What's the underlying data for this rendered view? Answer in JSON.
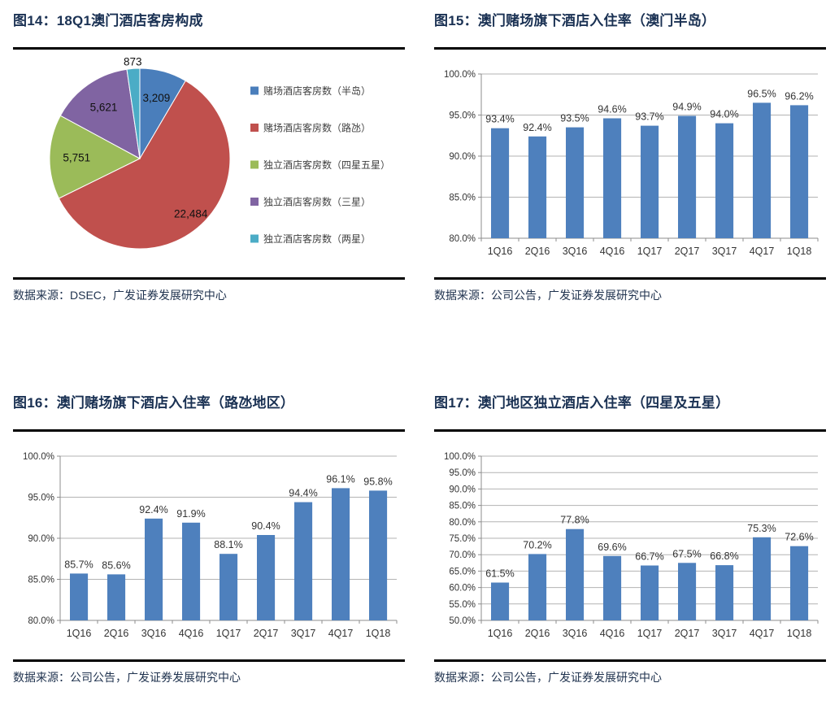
{
  "page": {
    "background": "#ffffff",
    "title_color": "#1a3153",
    "rule_color": "#000000",
    "axis_text_color": "#333333",
    "gridline_color": "#b3b3b3",
    "axis_line_color": "#8c8c8c"
  },
  "figures": [
    {
      "title": "图14：18Q1澳门酒店客房构成",
      "source": "数据来源：DSEC，广发证券发展研究中心",
      "chart_data": {
        "type": "pie",
        "legend_position": "right",
        "slices": [
          {
            "label": "赌场酒店客房数（半岛）",
            "value": 3209,
            "display": "3,209",
            "color": "#4a7ebb"
          },
          {
            "label": "赌场酒店客房数（路氹）",
            "value": 22484,
            "display": "22,484",
            "color": "#c0504d"
          },
          {
            "label": "独立酒店客房数（四星五星）",
            "value": 5751,
            "display": "5,751",
            "color": "#9bbb59"
          },
          {
            "label": "独立酒店客房数（三星）",
            "value": 5621,
            "display": "5,621",
            "color": "#8064a2"
          },
          {
            "label": "独立酒店客房数（两星）",
            "value": 873,
            "display": "873",
            "color": "#4bacc6"
          }
        ]
      }
    },
    {
      "title": "图15：澳门赌场旗下酒店入住率（澳门半岛）",
      "source": "数据来源：公司公告，广发证券发展研究中心",
      "chart_data": {
        "type": "bar",
        "categories": [
          "1Q16",
          "2Q16",
          "3Q16",
          "4Q16",
          "1Q17",
          "2Q17",
          "3Q17",
          "4Q17",
          "1Q18"
        ],
        "values": [
          93.4,
          92.4,
          93.5,
          94.6,
          93.7,
          94.9,
          94.0,
          96.5,
          96.2
        ],
        "labels": [
          "93.4%",
          "92.4%",
          "93.5%",
          "94.6%",
          "93.7%",
          "94.9%",
          "94.0%",
          "96.5%",
          "96.2%"
        ],
        "ylim": [
          80,
          100
        ],
        "ytick_values": [
          80,
          85,
          90,
          95,
          100
        ],
        "ytick_labels": [
          "80.0%",
          "85.0%",
          "90.0%",
          "95.0%",
          "100.0%"
        ],
        "grid": true,
        "legend_position": "none",
        "bar_color": "#4e80bd"
      }
    },
    {
      "title": "图16：澳门赌场旗下酒店入住率（路氹地区）",
      "source": "数据来源：公司公告，广发证券发展研究中心",
      "chart_data": {
        "type": "bar",
        "categories": [
          "1Q16",
          "2Q16",
          "3Q16",
          "4Q16",
          "1Q17",
          "2Q17",
          "3Q17",
          "4Q17",
          "1Q18"
        ],
        "values": [
          85.7,
          85.6,
          92.4,
          91.9,
          88.1,
          90.4,
          94.4,
          96.1,
          95.8
        ],
        "labels": [
          "85.7%",
          "85.6%",
          "92.4%",
          "91.9%",
          "88.1%",
          "90.4%",
          "94.4%",
          "96.1%",
          "95.8%"
        ],
        "ylim": [
          80,
          100
        ],
        "ytick_values": [
          80,
          85,
          90,
          95,
          100
        ],
        "ytick_labels": [
          "80.0%",
          "85.0%",
          "90.0%",
          "95.0%",
          "100.0%"
        ],
        "grid": true,
        "legend_position": "none",
        "bar_color": "#4e80bd"
      }
    },
    {
      "title": "图17：澳门地区独立酒店入住率（四星及五星）",
      "source": "数据来源：公司公告，广发证券发展研究中心",
      "chart_data": {
        "type": "bar",
        "categories": [
          "1Q16",
          "2Q16",
          "3Q16",
          "4Q16",
          "1Q17",
          "2Q17",
          "3Q17",
          "4Q17",
          "1Q18"
        ],
        "values": [
          61.5,
          70.2,
          77.8,
          69.6,
          66.7,
          67.5,
          66.8,
          75.3,
          72.6
        ],
        "labels": [
          "61.5%",
          "70.2%",
          "77.8%",
          "69.6%",
          "66.7%",
          "67.5%",
          "66.8%",
          "75.3%",
          "72.6%"
        ],
        "ylim": [
          50,
          100
        ],
        "ytick_values": [
          50,
          55,
          60,
          65,
          70,
          75,
          80,
          85,
          90,
          95,
          100
        ],
        "ytick_labels": [
          "50.0%",
          "55.0%",
          "60.0%",
          "65.0%",
          "70.0%",
          "75.0%",
          "80.0%",
          "85.0%",
          "90.0%",
          "95.0%",
          "100.0%"
        ],
        "grid": true,
        "legend_position": "none",
        "bar_color": "#4e80bd"
      }
    }
  ]
}
